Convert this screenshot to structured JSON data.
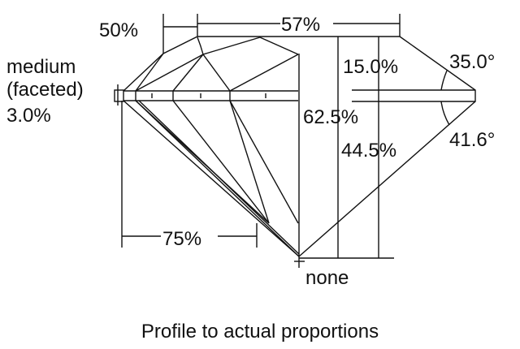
{
  "labels": {
    "girdle_line1": "medium",
    "girdle_line2": "(faceted)",
    "girdle_pct": "3.0%",
    "star_length": "50%",
    "table": "57%",
    "crown_height": "15.0%",
    "crown_angle": "35.0°",
    "total_depth": "62.5%",
    "pavilion_depth": "44.5%",
    "pavilion_angle": "41.6°",
    "lower_half": "75%",
    "culet": "none"
  },
  "caption": "Profile to actual proportions"
}
